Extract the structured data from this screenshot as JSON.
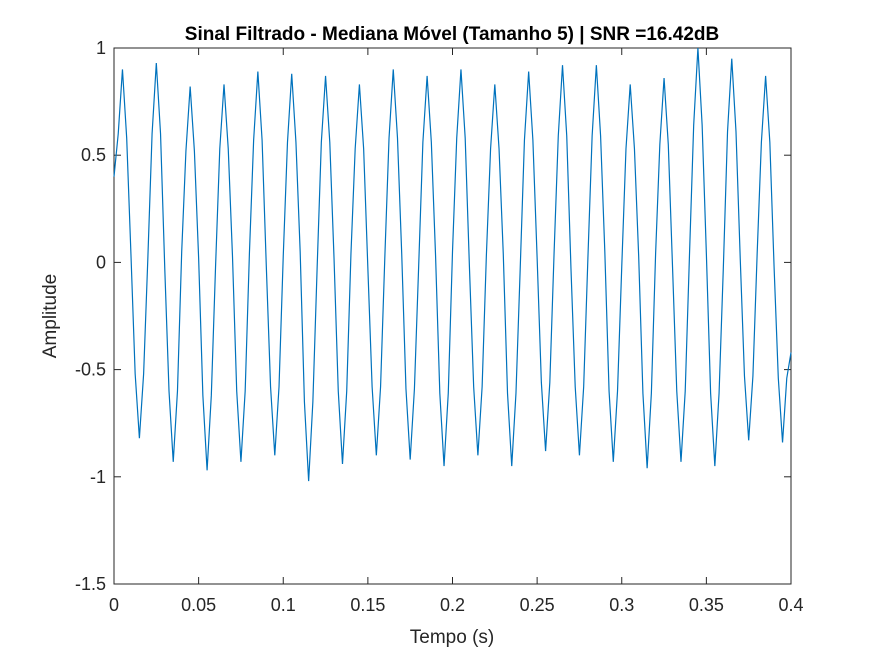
{
  "chart_data": {
    "type": "line",
    "title": "Sinal Filtrado - Mediana Móvel (Tamanho 5) | SNR =16.42dB",
    "xlabel": "Tempo (s)",
    "ylabel": "Amplitude",
    "xlim": [
      0,
      0.4
    ],
    "ylim": [
      -1.5,
      1
    ],
    "xticks": [
      0,
      0.05,
      0.1,
      0.15,
      0.2,
      0.25,
      0.3,
      0.35,
      0.4
    ],
    "yticks": [
      -1.5,
      -1,
      -0.5,
      0,
      0.5,
      1
    ],
    "grid": false,
    "x": [
      0,
      0.0025,
      0.005,
      0.0075,
      0.01,
      0.0125,
      0.015,
      0.0175,
      0.02,
      0.0225,
      0.025,
      0.0275,
      0.03,
      0.0325,
      0.035,
      0.0375,
      0.04,
      0.0425,
      0.045,
      0.0475,
      0.05,
      0.0525,
      0.055,
      0.0575,
      0.06,
      0.0625,
      0.065,
      0.0675,
      0.07,
      0.0725,
      0.075,
      0.0775,
      0.08,
      0.0825,
      0.085,
      0.0875,
      0.09,
      0.0925,
      0.095,
      0.0975,
      0.1,
      0.1025,
      0.105,
      0.1075,
      0.11,
      0.1125,
      0.115,
      0.1175,
      0.12,
      0.1225,
      0.125,
      0.1275,
      0.13,
      0.1325,
      0.135,
      0.1375,
      0.14,
      0.1425,
      0.145,
      0.1475,
      0.15,
      0.1525,
      0.155,
      0.1575,
      0.16,
      0.1625,
      0.165,
      0.1675,
      0.17,
      0.1725,
      0.175,
      0.1775,
      0.18,
      0.1825,
      0.185,
      0.1875,
      0.19,
      0.1925,
      0.195,
      0.1975,
      0.2,
      0.2025,
      0.205,
      0.2075,
      0.21,
      0.2125,
      0.215,
      0.2175,
      0.22,
      0.2225,
      0.225,
      0.2275,
      0.23,
      0.2325,
      0.235,
      0.2375,
      0.24,
      0.2425,
      0.245,
      0.2475,
      0.25,
      0.2525,
      0.255,
      0.2575,
      0.26,
      0.2625,
      0.265,
      0.2675,
      0.27,
      0.2725,
      0.275,
      0.2775,
      0.28,
      0.2825,
      0.285,
      0.2875,
      0.29,
      0.2925,
      0.295,
      0.2975,
      0.3,
      0.3025,
      0.305,
      0.3075,
      0.31,
      0.3125,
      0.315,
      0.3175,
      0.32,
      0.3225,
      0.325,
      0.3275,
      0.33,
      0.3325,
      0.335,
      0.3375,
      0.34,
      0.3425,
      0.345,
      0.3475,
      0.35,
      0.3525,
      0.355,
      0.3575,
      0.36,
      0.3625,
      0.365,
      0.3675,
      0.37,
      0.3725,
      0.375,
      0.3775,
      0.38,
      0.3825,
      0.385,
      0.3875,
      0.39,
      0.3925,
      0.395,
      0.3975,
      0.4
    ],
    "series": [
      {
        "name": "Sinal Filtrado",
        "color": "#0072bd",
        "values": [
          0.4,
          0.6,
          0.9,
          0.58,
          0.04,
          -0.52,
          -0.82,
          -0.52,
          0.02,
          0.6,
          0.93,
          0.6,
          -0.03,
          -0.6,
          -0.93,
          -0.6,
          0.05,
          0.52,
          0.82,
          0.52,
          0.02,
          -0.62,
          -0.97,
          -0.62,
          -0.02,
          0.53,
          0.83,
          0.53,
          0.03,
          -0.6,
          -0.93,
          -0.6,
          0.04,
          0.57,
          0.89,
          0.57,
          -0.02,
          -0.58,
          -0.9,
          -0.58,
          0.03,
          0.56,
          0.88,
          0.56,
          0.05,
          -0.65,
          -1.02,
          -0.65,
          -0.03,
          0.56,
          0.87,
          0.56,
          0.02,
          -0.6,
          -0.94,
          -0.6,
          0.04,
          0.53,
          0.83,
          0.53,
          -0.03,
          -0.58,
          -0.9,
          -0.58,
          0.02,
          0.58,
          0.9,
          0.58,
          0.04,
          -0.59,
          -0.92,
          -0.59,
          -0.02,
          0.56,
          0.87,
          0.56,
          0.03,
          -0.61,
          -0.95,
          -0.61,
          0.05,
          0.58,
          0.9,
          0.58,
          -0.02,
          -0.58,
          -0.9,
          -0.58,
          0.03,
          0.53,
          0.83,
          0.53,
          0.04,
          -0.61,
          -0.95,
          -0.61,
          -0.03,
          0.57,
          0.89,
          0.57,
          0.02,
          -0.56,
          -0.88,
          -0.56,
          0.04,
          0.59,
          0.92,
          0.59,
          -0.03,
          -0.58,
          -0.9,
          -0.58,
          0.02,
          0.59,
          0.92,
          0.59,
          0.05,
          -0.6,
          -0.93,
          -0.6,
          -0.02,
          0.53,
          0.83,
          0.53,
          0.03,
          -0.61,
          -0.96,
          -0.61,
          0.04,
          0.55,
          0.86,
          0.55,
          -0.02,
          -0.6,
          -0.93,
          -0.6,
          0.03,
          0.64,
          1.0,
          0.64,
          0.04,
          -0.61,
          -0.95,
          -0.61,
          -0.03,
          0.61,
          0.95,
          0.61,
          0.02,
          -0.53,
          -0.83,
          -0.53,
          0.04,
          0.56,
          0.87,
          0.56,
          -0.02,
          -0.54,
          -0.84,
          -0.54,
          -0.42
        ]
      }
    ]
  }
}
